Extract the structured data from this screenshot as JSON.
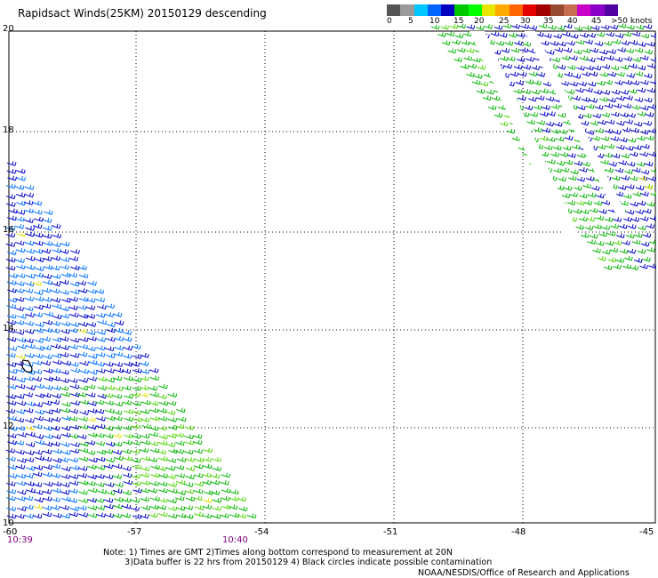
{
  "title": "Rapidsact Winds(25KM) 20150129 descending",
  "colorbar": {
    "colors": [
      "#555555",
      "#9a9a9a",
      "#00c8ff",
      "#0064ff",
      "#0000c0",
      "#00c800",
      "#00ff00",
      "#e6e600",
      "#ffaa00",
      "#ff6400",
      "#e60000",
      "#a00000",
      "#964b32",
      "#c86e50",
      "#c800c8",
      "#8c00c8",
      "#5000a0"
    ],
    "labels": [
      "0",
      "5",
      "10",
      "15",
      "20",
      "25",
      "30",
      "35",
      "40",
      "45",
      ">50 knots"
    ]
  },
  "y_ticks": [
    "20",
    "18",
    "16",
    "14",
    "12",
    "10"
  ],
  "x_ticks": [
    "-60",
    "-57",
    "-54",
    "-51",
    "-48",
    "-45"
  ],
  "times": {
    "start": "10:39",
    "end": "10:40"
  },
  "notes": [
    "Note: 1) Times are GMT 2)Times along bottom correspond to measurement at 20N",
    "        3)Data buffer is 22 hrs from 20150129 4) Black circles indicate possible contamination"
  ],
  "credit": "NOAA/NESDIS/Office of Research and Applications",
  "map_extent": {
    "lon": [
      -60,
      -45
    ],
    "lat": [
      10,
      20
    ]
  },
  "wind_colors": {
    "blue": "#0000cc",
    "lightblue": "#0070ff",
    "green": "#00b400",
    "brightgreen": "#4cd400",
    "yellow": "#e0e000"
  }
}
